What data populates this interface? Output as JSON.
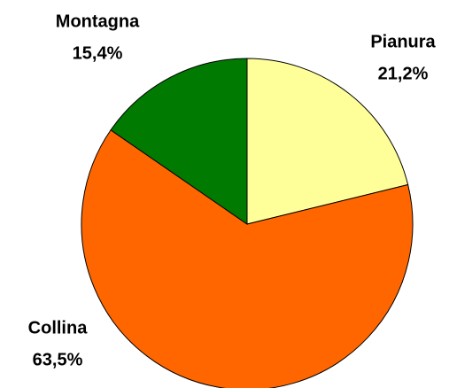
{
  "chart_data": {
    "type": "pie",
    "categories": [
      "Pianura",
      "Collina",
      "Montagna"
    ],
    "values": [
      21.2,
      63.5,
      15.4
    ],
    "value_labels": [
      "21,2%",
      "63,5%",
      "15,4%"
    ],
    "colors": [
      "#ffff99",
      "#ff6600",
      "#007a00"
    ]
  }
}
